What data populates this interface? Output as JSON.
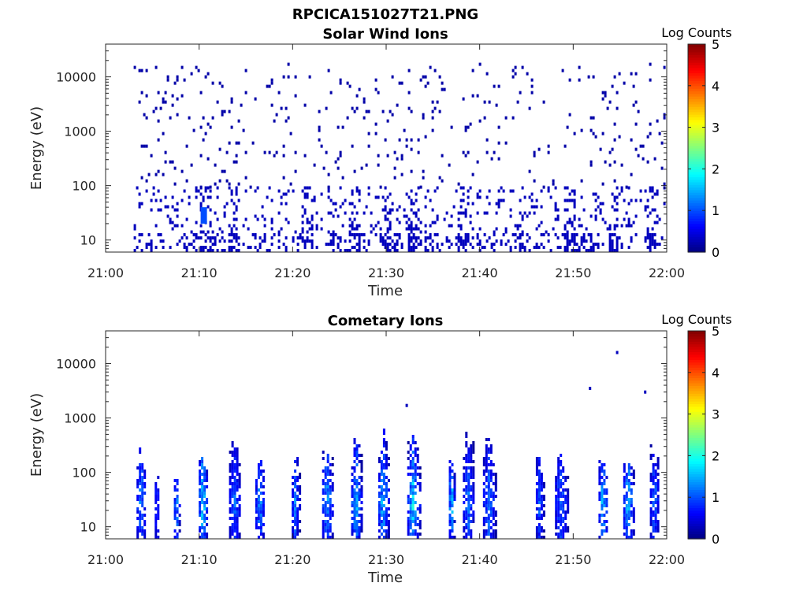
{
  "figure": {
    "title": "RPCICA151027T21.PNG"
  },
  "chart_data": [
    {
      "type": "heatmap",
      "title": "Solar Wind Ions",
      "xlabel": "Time",
      "ylabel": "Energy (eV)",
      "xtick_labels": [
        "21:00",
        "21:10",
        "21:20",
        "21:30",
        "21:40",
        "21:50",
        "22:00"
      ],
      "x_range_minutes": [
        0,
        60
      ],
      "ytick_labels": [
        "10",
        "100",
        "1000",
        "10000"
      ],
      "ytick_values": [
        10,
        100,
        1000,
        10000
      ],
      "y_scale": "log",
      "ylim": [
        6,
        40000
      ],
      "colorbar": {
        "label": "Log Counts",
        "ticks": [
          "0",
          "1",
          "2",
          "3",
          "4",
          "5"
        ],
        "range": [
          0,
          5
        ],
        "colormap": "jet"
      },
      "data_start_minute": 3,
      "data_end_minute": 60,
      "features": [
        {
          "band_eV": [
            6,
            15
          ],
          "level": 0.3,
          "occurrence": "frequent"
        },
        {
          "band_eV": [
            15,
            100
          ],
          "level": 0.3,
          "occurrence": "common, enhanced near 21:10, 21:32, 21:38, 21:54"
        },
        {
          "band_eV": [
            100,
            20000
          ],
          "level": 0.2,
          "occurrence": "sparse scattered"
        },
        {
          "time_minute": 10.5,
          "band_eV": [
            20,
            40
          ],
          "level": 1.0
        }
      ]
    },
    {
      "type": "heatmap",
      "title": "Cometary Ions",
      "xlabel": "Time",
      "ylabel": "Energy (eV)",
      "xtick_labels": [
        "21:00",
        "21:10",
        "21:20",
        "21:30",
        "21:40",
        "21:50",
        "22:00"
      ],
      "x_range_minutes": [
        0,
        60
      ],
      "ytick_labels": [
        "10",
        "100",
        "1000",
        "10000"
      ],
      "ytick_values": [
        10,
        100,
        1000,
        10000
      ],
      "y_scale": "log",
      "ylim": [
        6,
        40000
      ],
      "colorbar": {
        "label": "Log Counts",
        "ticks": [
          "0",
          "1",
          "2",
          "3",
          "4",
          "5"
        ],
        "range": [
          0,
          5
        ],
        "colormap": "jet"
      },
      "bursts": [
        {
          "center_minute": 3.8,
          "width_minute": 1.0,
          "peak_level": 1.7,
          "top_eV": 400
        },
        {
          "center_minute": 5.5,
          "width_minute": 0.5,
          "peak_level": 1.2,
          "top_eV": 200
        },
        {
          "center_minute": 7.6,
          "width_minute": 0.6,
          "peak_level": 1.8,
          "top_eV": 120
        },
        {
          "center_minute": 10.4,
          "width_minute": 0.9,
          "peak_level": 2.3,
          "top_eV": 250
        },
        {
          "center_minute": 13.8,
          "width_minute": 1.2,
          "peak_level": 1.4,
          "top_eV": 500
        },
        {
          "center_minute": 16.5,
          "width_minute": 1.0,
          "peak_level": 1.7,
          "top_eV": 250
        },
        {
          "center_minute": 20.3,
          "width_minute": 0.8,
          "peak_level": 1.5,
          "top_eV": 300
        },
        {
          "center_minute": 23.7,
          "width_minute": 1.1,
          "peak_level": 1.9,
          "top_eV": 400
        },
        {
          "center_minute": 26.8,
          "width_minute": 1.1,
          "peak_level": 2.0,
          "top_eV": 600
        },
        {
          "center_minute": 29.7,
          "width_minute": 1.1,
          "peak_level": 2.0,
          "top_eV": 700
        },
        {
          "center_minute": 32.9,
          "width_minute": 1.3,
          "peak_level": 2.2,
          "top_eV": 800
        },
        {
          "center_minute": 37.0,
          "width_minute": 0.6,
          "peak_level": 2.1,
          "top_eV": 300
        },
        {
          "center_minute": 38.8,
          "width_minute": 1.2,
          "peak_level": 1.5,
          "top_eV": 700
        },
        {
          "center_minute": 41.0,
          "width_minute": 1.3,
          "peak_level": 1.6,
          "top_eV": 600
        },
        {
          "center_minute": 46.4,
          "width_minute": 0.8,
          "peak_level": 1.4,
          "top_eV": 300
        },
        {
          "center_minute": 48.7,
          "width_minute": 1.3,
          "peak_level": 1.5,
          "top_eV": 400
        },
        {
          "center_minute": 53.2,
          "width_minute": 1.0,
          "peak_level": 1.9,
          "top_eV": 300
        },
        {
          "center_minute": 55.9,
          "width_minute": 1.1,
          "peak_level": 2.0,
          "top_eV": 250
        },
        {
          "center_minute": 58.7,
          "width_minute": 1.0,
          "peak_level": 1.5,
          "top_eV": 500
        }
      ],
      "isolated_points": [
        {
          "minute": 54.7,
          "energy_eV": 16000,
          "level": 0.3
        },
        {
          "minute": 51.8,
          "energy_eV": 3500,
          "level": 0.3
        },
        {
          "minute": 57.7,
          "energy_eV": 3000,
          "level": 0.3
        },
        {
          "minute": 32.2,
          "energy_eV": 1700,
          "level": 0.3
        }
      ]
    }
  ]
}
